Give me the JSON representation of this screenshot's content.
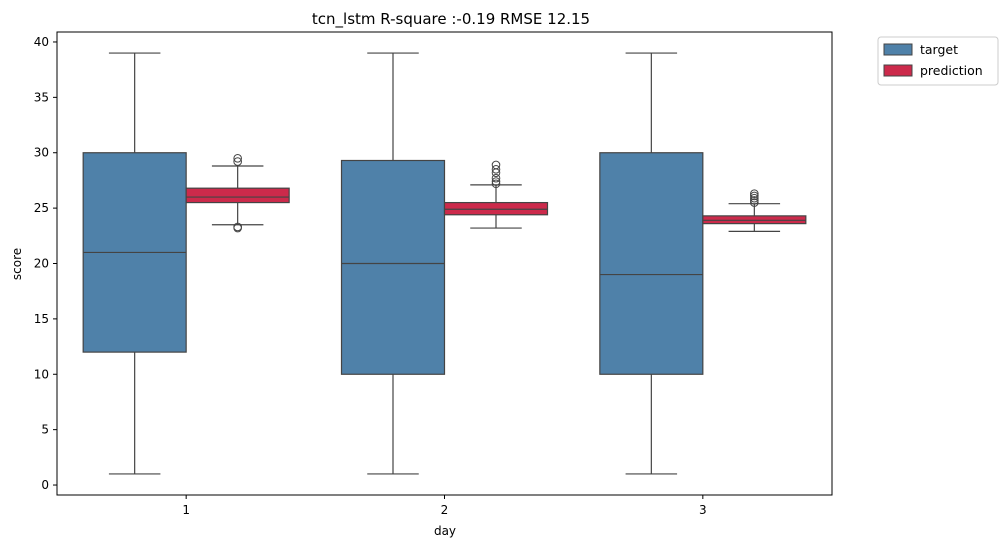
{
  "chart_data": {
    "type": "box",
    "title": "tcn_lstm R-square :-0.19 RMSE 12.15",
    "xlabel": "day",
    "ylabel": "score",
    "categories": [
      "1",
      "2",
      "3"
    ],
    "ylim": [
      -0.9,
      40.9
    ],
    "yticks": [
      "0",
      "5",
      "10",
      "15",
      "20",
      "25",
      "30",
      "35",
      "40"
    ],
    "grid": false,
    "legend_position": "outside-top-right",
    "series": [
      {
        "name": "target",
        "color": "#4f81a9",
        "boxes": [
          {
            "whisker_low": 1,
            "q1": 12,
            "median": 21,
            "q3": 30,
            "whisker_high": 39,
            "outliers": []
          },
          {
            "whisker_low": 1,
            "q1": 10,
            "median": 20,
            "q3": 29.3,
            "whisker_high": 39,
            "outliers": []
          },
          {
            "whisker_low": 1,
            "q1": 10,
            "median": 19,
            "q3": 30,
            "whisker_high": 39,
            "outliers": []
          }
        ]
      },
      {
        "name": "prediction",
        "color": "#cc2a4b",
        "boxes": [
          {
            "whisker_low": 23.5,
            "q1": 25.5,
            "median": 26.0,
            "q3": 26.8,
            "whisker_high": 28.8,
            "outliers": [
              23.2,
              23.3,
              29.2,
              29.5
            ]
          },
          {
            "whisker_low": 23.2,
            "q1": 24.4,
            "median": 24.9,
            "q3": 25.5,
            "whisker_high": 27.1,
            "outliers": [
              27.2,
              27.4,
              27.7,
              28.2,
              28.5,
              28.9
            ]
          },
          {
            "whisker_low": 22.9,
            "q1": 23.6,
            "median": 23.9,
            "q3": 24.3,
            "whisker_high": 25.4,
            "outliers": [
              25.5,
              25.7,
              25.9,
              26.1,
              26.3
            ]
          }
        ]
      }
    ]
  }
}
